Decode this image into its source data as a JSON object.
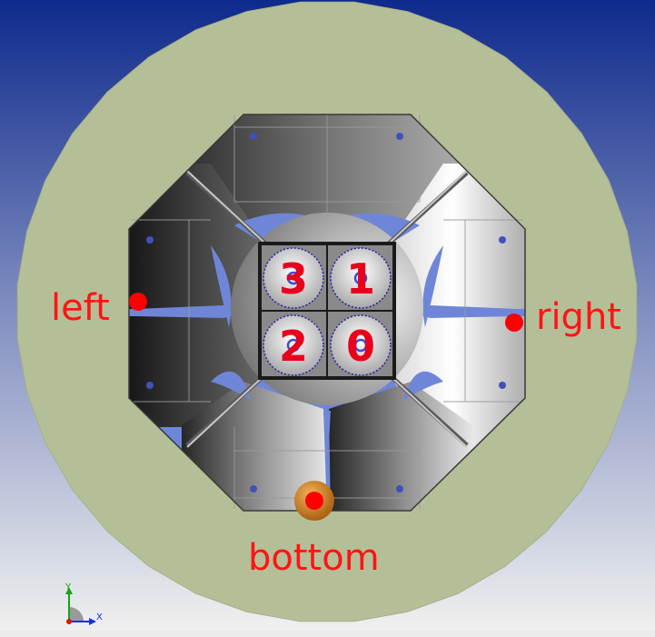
{
  "labels": {
    "left": "left",
    "right": "right",
    "bottom": "bottom"
  },
  "cells": [
    {
      "id": "3"
    },
    {
      "id": "1"
    },
    {
      "id": "2"
    },
    {
      "id": "0"
    }
  ],
  "axes": {
    "y": "Y",
    "x": "X"
  },
  "colors": {
    "background_top": "#0e2a8c",
    "background_bottom": "#f2f2f0",
    "ring": "#b5bf97",
    "marker": "#ff0000",
    "cell_number": "#e8001c",
    "gap_blue": "#6f86d8",
    "orange_element": "#d07a18"
  }
}
